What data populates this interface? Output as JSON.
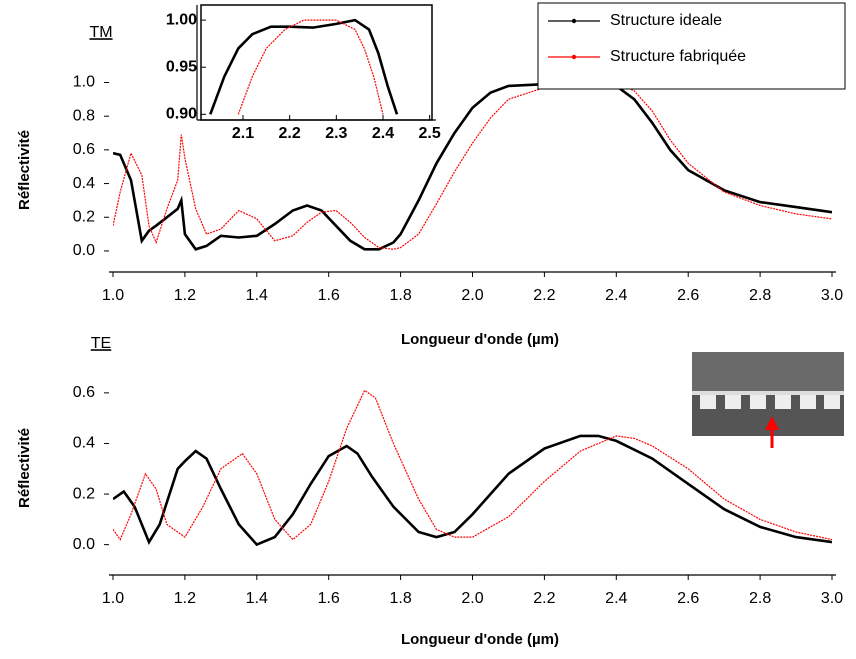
{
  "chart_data": [
    {
      "type": "line",
      "label": "TM",
      "xlabel": "Longueur d'onde (µm)",
      "ylabel": "Réflectivité",
      "xlim": [
        1,
        3
      ],
      "ylim": [
        -0.125,
        1.46
      ],
      "xticks": [
        {
          "value": 1,
          "label": "1.0"
        },
        1.2,
        1.4,
        1.6,
        1.8,
        {
          "value": 2,
          "label": "2.0"
        },
        2.2,
        2.4,
        2.6,
        2.8,
        {
          "value": 3,
          "label": "3.0"
        }
      ],
      "yticks": [
        {
          "value": 0,
          "label": "0.0"
        },
        0.2,
        0.4,
        0.6,
        0.8,
        {
          "value": 1,
          "label": "1.0"
        }
      ],
      "legend": "upper right",
      "x": [
        1.0,
        1.02,
        1.05,
        1.08,
        1.1,
        1.12,
        1.15,
        1.18,
        1.19,
        1.2,
        1.23,
        1.26,
        1.3,
        1.35,
        1.4,
        1.45,
        1.5,
        1.54,
        1.58,
        1.62,
        1.66,
        1.7,
        1.74,
        1.78,
        1.8,
        1.85,
        1.9,
        1.95,
        2.0,
        2.05,
        2.1,
        2.2,
        2.3,
        2.36,
        2.4,
        2.45,
        2.5,
        2.55,
        2.6,
        2.7,
        2.8,
        2.9,
        3.0
      ],
      "series": [
        {
          "name": "Structure ideale",
          "color": "#000000",
          "values": [
            0.58,
            0.57,
            0.42,
            0.06,
            0.12,
            0.15,
            0.2,
            0.25,
            0.3,
            0.1,
            0.01,
            0.03,
            0.09,
            0.08,
            0.09,
            0.16,
            0.24,
            0.27,
            0.24,
            0.15,
            0.06,
            0.01,
            0.01,
            0.05,
            0.1,
            0.3,
            0.52,
            0.7,
            0.85,
            0.94,
            0.98,
            0.99,
            0.99,
            1.0,
            0.98,
            0.9,
            0.76,
            0.6,
            0.48,
            0.36,
            0.29,
            0.26,
            0.23
          ]
        },
        {
          "name": "Structure fabriquée",
          "color": "#ff0000",
          "values": [
            0.15,
            0.35,
            0.58,
            0.45,
            0.15,
            0.05,
            0.25,
            0.42,
            0.69,
            0.55,
            0.25,
            0.1,
            0.13,
            0.24,
            0.19,
            0.06,
            0.09,
            0.17,
            0.23,
            0.24,
            0.17,
            0.08,
            0.02,
            0.01,
            0.02,
            0.1,
            0.28,
            0.47,
            0.64,
            0.79,
            0.9,
            0.97,
            0.99,
            0.995,
            1.0,
            0.95,
            0.83,
            0.66,
            0.52,
            0.35,
            0.27,
            0.22,
            0.19
          ]
        }
      ]
    },
    {
      "type": "line",
      "xlim": [
        2.01,
        2.505
      ],
      "ylim": [
        0.894,
        1.016
      ],
      "xticks": [
        2.1,
        2.2,
        2.3,
        2.4,
        2.5
      ],
      "yticks": [
        {
          "value": 0.9,
          "label": "0.90"
        },
        0.95,
        {
          "value": 1,
          "label": "1.00"
        }
      ],
      "series": [
        {
          "color": "#000000",
          "x": [
            2.03,
            2.06,
            2.09,
            2.12,
            2.16,
            2.2,
            2.25,
            2.3,
            2.34,
            2.37,
            2.39,
            2.41,
            2.43
          ],
          "values": [
            0.9,
            0.94,
            0.97,
            0.985,
            0.993,
            0.993,
            0.992,
            0.996,
            1.0,
            0.99,
            0.965,
            0.93,
            0.9
          ]
        },
        {
          "color": "#ff0000",
          "x": [
            2.09,
            2.12,
            2.15,
            2.19,
            2.23,
            2.3,
            2.34,
            2.36,
            2.38,
            2.4
          ],
          "values": [
            0.9,
            0.94,
            0.97,
            0.99,
            1.0,
            1.0,
            0.99,
            0.97,
            0.94,
            0.9
          ]
        }
      ]
    },
    {
      "type": "line",
      "label": "TE",
      "xlabel": "Longueur d'onde (µm)",
      "ylabel": "Réflectivité",
      "xlim": [
        1,
        3
      ],
      "ylim": [
        -0.12,
        0.73
      ],
      "xticks": [
        {
          "value": 1,
          "label": "1.0"
        },
        1.2,
        1.4,
        1.6,
        1.8,
        {
          "value": 2,
          "label": "2.0"
        },
        2.2,
        2.4,
        2.6,
        2.8,
        {
          "value": 3,
          "label": "3.0"
        }
      ],
      "yticks": [
        {
          "value": 0,
          "label": "0.0"
        },
        0.2,
        0.4,
        0.6
      ],
      "series": [
        {
          "color": "#000000",
          "x": [
            1.0,
            1.03,
            1.06,
            1.1,
            1.13,
            1.18,
            1.2,
            1.23,
            1.26,
            1.3,
            1.35,
            1.4,
            1.45,
            1.5,
            1.55,
            1.6,
            1.65,
            1.68,
            1.72,
            1.78,
            1.85,
            1.9,
            1.95,
            2.0,
            2.1,
            2.2,
            2.3,
            2.35,
            2.4,
            2.5,
            2.6,
            2.7,
            2.8,
            2.9,
            3.0
          ],
          "values": [
            0.18,
            0.21,
            0.15,
            0.01,
            0.08,
            0.3,
            0.33,
            0.37,
            0.34,
            0.22,
            0.08,
            0.0,
            0.03,
            0.12,
            0.24,
            0.35,
            0.39,
            0.36,
            0.27,
            0.15,
            0.05,
            0.03,
            0.05,
            0.12,
            0.28,
            0.38,
            0.43,
            0.43,
            0.41,
            0.34,
            0.24,
            0.14,
            0.07,
            0.03,
            0.01
          ]
        },
        {
          "color": "#ff0000",
          "x": [
            1.0,
            1.02,
            1.05,
            1.09,
            1.12,
            1.15,
            1.2,
            1.25,
            1.3,
            1.36,
            1.4,
            1.45,
            1.5,
            1.55,
            1.6,
            1.65,
            1.7,
            1.73,
            1.78,
            1.85,
            1.9,
            1.95,
            2.0,
            2.1,
            2.2,
            2.3,
            2.4,
            2.45,
            2.5,
            2.6,
            2.7,
            2.8,
            2.9,
            3.0
          ],
          "values": [
            0.06,
            0.02,
            0.12,
            0.28,
            0.22,
            0.08,
            0.03,
            0.15,
            0.3,
            0.36,
            0.28,
            0.1,
            0.02,
            0.08,
            0.25,
            0.46,
            0.61,
            0.58,
            0.4,
            0.18,
            0.06,
            0.03,
            0.03,
            0.11,
            0.25,
            0.37,
            0.43,
            0.42,
            0.39,
            0.3,
            0.18,
            0.1,
            0.05,
            0.02
          ]
        }
      ]
    }
  ]
}
